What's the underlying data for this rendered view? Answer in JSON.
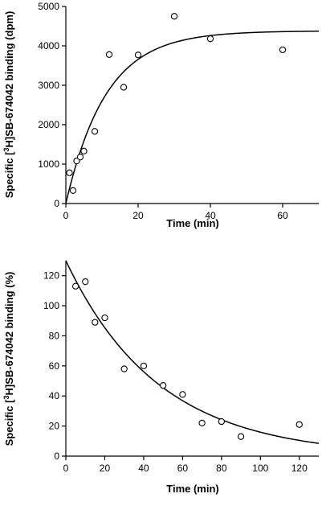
{
  "chart_data": [
    {
      "type": "scatter",
      "xlabel": "Time (min)",
      "ylabel_pre": "Specific [",
      "ylabel_sup": "3",
      "ylabel_post": "H]SB-674042 binding (dpm)",
      "xlim": [
        0,
        70
      ],
      "ylim": [
        0,
        5000
      ],
      "x_ticks": [
        0,
        20,
        40,
        60
      ],
      "y_ticks": [
        0,
        1000,
        2000,
        3000,
        4000,
        5000
      ],
      "points": [
        {
          "x": 1,
          "y": 780
        },
        {
          "x": 2,
          "y": 330
        },
        {
          "x": 3,
          "y": 1080
        },
        {
          "x": 4,
          "y": 1180
        },
        {
          "x": 5,
          "y": 1330
        },
        {
          "x": 8,
          "y": 1830
        },
        {
          "x": 12,
          "y": 3780
        },
        {
          "x": 16,
          "y": 2950
        },
        {
          "x": 20,
          "y": 3770
        },
        {
          "x": 30,
          "y": 4750
        },
        {
          "x": 40,
          "y": 4180
        },
        {
          "x": 60,
          "y": 3900
        }
      ],
      "fit": {
        "model": "association",
        "ymax": 4380,
        "k": 0.09
      }
    },
    {
      "type": "scatter",
      "xlabel": "Time (min)",
      "ylabel_pre": "Specific [",
      "ylabel_sup": "3",
      "ylabel_post": "H]SB-674042 binding (%)",
      "xlim": [
        0,
        130
      ],
      "ylim": [
        0,
        130
      ],
      "x_ticks": [
        0,
        20,
        40,
        60,
        80,
        100,
        120
      ],
      "y_ticks": [
        0,
        20,
        40,
        60,
        80,
        100,
        120
      ],
      "points": [
        {
          "x": 5,
          "y": 113
        },
        {
          "x": 10,
          "y": 116
        },
        {
          "x": 15,
          "y": 89
        },
        {
          "x": 20,
          "y": 92
        },
        {
          "x": 30,
          "y": 58
        },
        {
          "x": 40,
          "y": 60
        },
        {
          "x": 50,
          "y": 47
        },
        {
          "x": 60,
          "y": 41
        },
        {
          "x": 70,
          "y": 22
        },
        {
          "x": 80,
          "y": 23
        },
        {
          "x": 90,
          "y": 13
        },
        {
          "x": 120,
          "y": 21
        }
      ],
      "fit": {
        "model": "decay",
        "y0": 130,
        "k": 0.021
      }
    }
  ]
}
